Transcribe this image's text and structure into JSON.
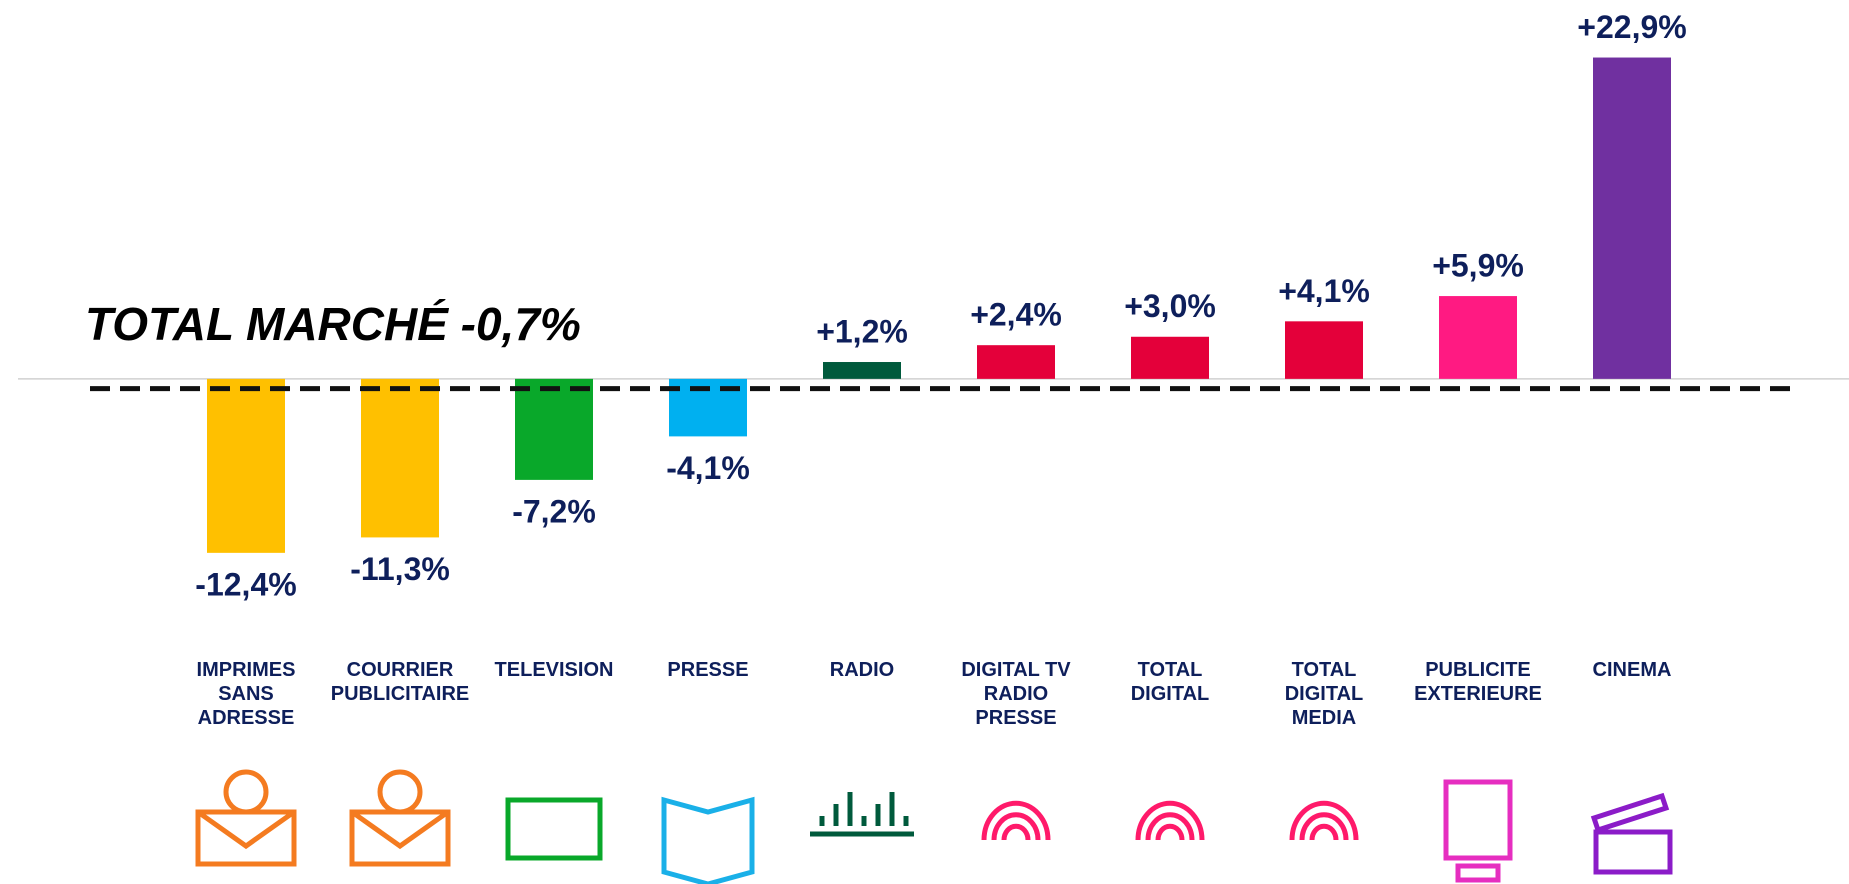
{
  "chart_data": {
    "type": "bar",
    "categories": [
      "IMPRIMES\nSANS\nADRESSE",
      "COURRIER\nPUBLICITAIRE",
      "TELEVISION",
      "PRESSE",
      "RADIO",
      "DIGITAL TV\nRADIO\nPRESSE",
      "TOTAL\nDIGITAL",
      "TOTAL\nDIGITAL\nMEDIA",
      "PUBLICITE\nEXTERIEURE",
      "CINEMA"
    ],
    "values": [
      -12.4,
      -11.3,
      -7.2,
      -4.1,
      1.2,
      2.4,
      3.0,
      4.1,
      5.9,
      22.9
    ],
    "value_labels": [
      "-12,4%",
      "-11,3%",
      "-7,2%",
      "-4,1%",
      "+1,2%",
      "+2,4%",
      "+3,0%",
      "+4,1%",
      "+5,9%",
      "+22,9%"
    ],
    "colors": [
      "#ffc000",
      "#ffc000",
      "#09a82a",
      "#00b0f0",
      "#005a3c",
      "#e4003a",
      "#e4003a",
      "#e4003a",
      "#ff1a82",
      "#7030a0"
    ],
    "ylim": [
      -36,
      27
    ],
    "reference_line": {
      "value": -0.7,
      "label": "TOTAL MARCHÉ -0,7%"
    }
  }
}
